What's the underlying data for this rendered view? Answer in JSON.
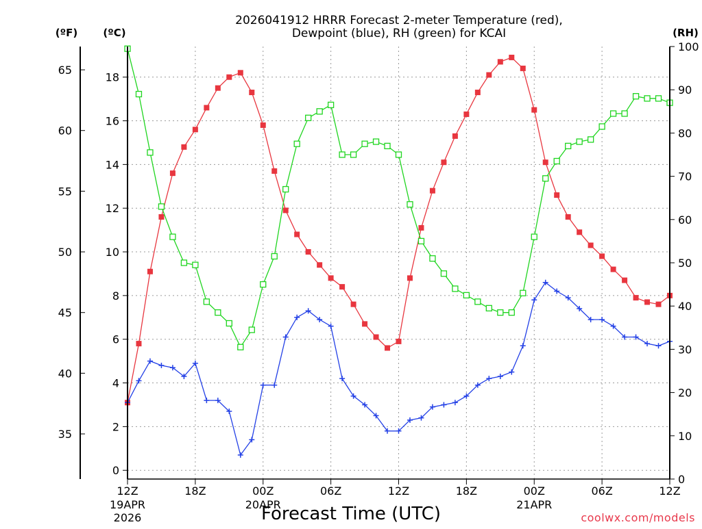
{
  "chart_data": {
    "type": "line",
    "title_line1": "2026041912 HRRR Forecast 2-meter Temperature (red),",
    "title_line2": "Dewpoint (blue), RH (green) for KCAI",
    "xlabel": "Forecast Time (UTC)",
    "credit": "coolwx.com/models",
    "unit_f": "(ºF)",
    "unit_c": "(ºC)",
    "unit_rh": "(RH)",
    "x_hours": [
      0,
      1,
      2,
      3,
      4,
      5,
      6,
      7,
      8,
      9,
      10,
      11,
      12,
      13,
      14,
      15,
      16,
      17,
      18,
      19,
      20,
      21,
      22,
      23,
      24,
      25,
      26,
      27,
      28,
      29,
      30,
      31,
      32,
      33,
      34,
      35,
      36,
      37,
      38,
      39,
      40,
      41,
      42,
      43,
      44,
      45,
      46,
      47,
      48
    ],
    "xlim": [
      0,
      48
    ],
    "x_ticks": [
      {
        "hour": 0,
        "label": "12Z",
        "date": [
          "19APR",
          "2026"
        ]
      },
      {
        "hour": 6,
        "label": "18Z",
        "date": []
      },
      {
        "hour": 12,
        "label": "00Z",
        "date": [
          "20APR"
        ]
      },
      {
        "hour": 18,
        "label": "06Z",
        "date": []
      },
      {
        "hour": 24,
        "label": "12Z",
        "date": []
      },
      {
        "hour": 30,
        "label": "18Z",
        "date": []
      },
      {
        "hour": 36,
        "label": "00Z",
        "date": [
          "21APR"
        ]
      },
      {
        "hour": 42,
        "label": "06Z",
        "date": []
      },
      {
        "hour": 48,
        "label": "12Z",
        "date": []
      }
    ],
    "celsius_axis": {
      "ylim": [
        -0.4,
        19.4
      ],
      "ticks": [
        "0",
        "2",
        "4",
        "6",
        "8",
        "10",
        "12",
        "14",
        "16",
        "18"
      ]
    },
    "fahrenheit_axis": {
      "ticks": [
        "35",
        "40",
        "45",
        "50",
        "55",
        "60",
        "65"
      ]
    },
    "rh_axis": {
      "ylim": [
        0,
        100
      ],
      "ticks": [
        "0",
        "10",
        "20",
        "30",
        "40",
        "50",
        "60",
        "70",
        "80",
        "90",
        "100"
      ]
    },
    "series": [
      {
        "axis": "celsius",
        "color": "#e8363f",
        "marker": "filled-square",
        "values": [
          3.1,
          5.8,
          9.1,
          11.6,
          13.6,
          14.8,
          15.6,
          16.6,
          17.5,
          18.0,
          18.2,
          17.3,
          15.8,
          13.7,
          11.9,
          10.8,
          10.0,
          9.4,
          8.8,
          8.4,
          7.6,
          6.7,
          6.1,
          5.6,
          5.9,
          8.8,
          11.1,
          12.8,
          14.1,
          15.3,
          16.3,
          17.3,
          18.1,
          18.7,
          18.9,
          18.4,
          16.5,
          14.1,
          12.6,
          11.6,
          10.9,
          10.3,
          9.8,
          9.2,
          8.7,
          7.9,
          7.7,
          7.6,
          8.0
        ]
      },
      {
        "axis": "celsius",
        "color": "#2340e6",
        "marker": "plus",
        "values": [
          3.1,
          4.1,
          5.0,
          4.8,
          4.7,
          4.3,
          4.9,
          3.2,
          3.2,
          2.7,
          0.7,
          1.4,
          3.9,
          3.9,
          6.1,
          7.0,
          7.3,
          6.9,
          6.6,
          4.2,
          3.4,
          3.0,
          2.5,
          1.8,
          1.8,
          2.3,
          2.4,
          2.9,
          3.0,
          3.1,
          3.4,
          3.9,
          4.2,
          4.3,
          4.5,
          5.7,
          7.8,
          8.6,
          8.2,
          7.9,
          7.4,
          6.9,
          6.9,
          6.6,
          6.1,
          6.1,
          5.8,
          5.7,
          5.9
        ]
      },
      {
        "axis": "rh",
        "color": "#1fd51f",
        "marker": "open-square",
        "values": [
          99.5,
          89,
          75.5,
          63,
          56,
          50,
          49.5,
          41,
          38.5,
          36,
          30.5,
          34.5,
          45,
          51.5,
          67,
          77.5,
          83.5,
          85,
          86.5,
          75,
          75,
          77.5,
          78,
          77,
          75,
          63.5,
          55,
          51,
          47.5,
          44,
          42.5,
          41,
          39.5,
          38.5,
          38.5,
          43,
          56,
          69.5,
          73.5,
          77,
          78,
          78.5,
          81.5,
          84.5,
          84.5,
          88.5,
          88,
          88,
          87
        ]
      }
    ]
  }
}
